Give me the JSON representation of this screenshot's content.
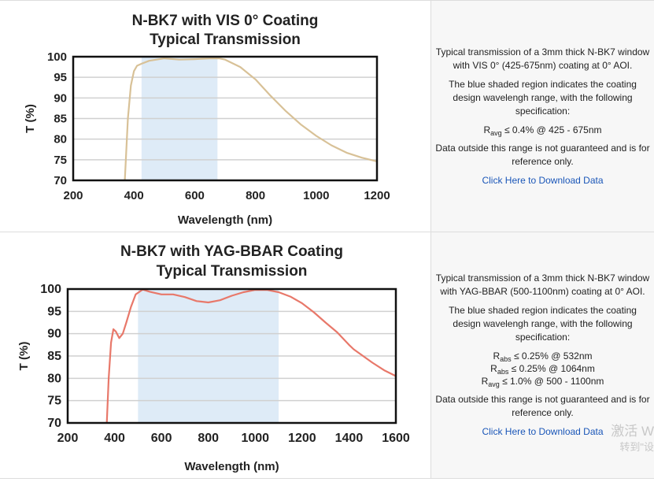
{
  "chart_data": [
    {
      "type": "line",
      "title": [
        "N-BK7 with VIS 0° Coating",
        "Typical Transmission"
      ],
      "xlabel": "Wavelength (nm)",
      "ylabel": "T (%)",
      "xlim": [
        200,
        1200
      ],
      "ylim": [
        70,
        100
      ],
      "xticks": [
        "200",
        "400",
        "600",
        "800",
        "1000",
        "1200"
      ],
      "yticks": [
        "100",
        "95",
        "90",
        "85",
        "80",
        "75",
        "70"
      ],
      "grid": true,
      "shaded_region": [
        425,
        675
      ],
      "line_color": "#d8c197",
      "shade_color": "#deebf7",
      "x": [
        370,
        380,
        390,
        400,
        410,
        425,
        450,
        500,
        550,
        600,
        650,
        680,
        700,
        750,
        800,
        850,
        900,
        950,
        1000,
        1050,
        1100,
        1150,
        1200
      ],
      "y": [
        70,
        85,
        93,
        96.5,
        97.8,
        98.3,
        99,
        99.6,
        99.3,
        99.4,
        99.6,
        99.6,
        99.3,
        97.5,
        94.5,
        90.5,
        86.8,
        83.5,
        80.8,
        78.5,
        76.7,
        75.5,
        74.6
      ]
    },
    {
      "type": "line",
      "title": [
        "N-BK7 with YAG-BBAR Coating",
        "Typical Transmission"
      ],
      "xlabel": "Wavelength (nm)",
      "ylabel": "T (%)",
      "xlim": [
        200,
        1600
      ],
      "ylim": [
        70,
        100
      ],
      "xticks": [
        "200",
        "400",
        "600",
        "800",
        "1000",
        "1200",
        "1400",
        "1600"
      ],
      "yticks": [
        "100",
        "95",
        "90",
        "85",
        "80",
        "75",
        "70"
      ],
      "grid": true,
      "shaded_region": [
        500,
        1100
      ],
      "line_color": "#e8786a",
      "shade_color": "#deebf7",
      "x": [
        367,
        375,
        385,
        395,
        405,
        420,
        435,
        450,
        470,
        490,
        520,
        550,
        600,
        650,
        700,
        750,
        800,
        850,
        900,
        950,
        1000,
        1050,
        1100,
        1150,
        1200,
        1250,
        1300,
        1350,
        1400,
        1420,
        1500,
        1550,
        1600
      ],
      "y": [
        70,
        80,
        88,
        91,
        90.5,
        89,
        90,
        92.5,
        96,
        98.8,
        99.9,
        99.4,
        98.8,
        98.8,
        98.2,
        97.3,
        97,
        97.5,
        98.5,
        99.3,
        99.8,
        99.8,
        99.3,
        98.3,
        96.8,
        94.8,
        92.5,
        90.3,
        87.5,
        86.5,
        83.5,
        81.8,
        80.5
      ]
    }
  ],
  "descriptions": [
    {
      "p1": "Typical transmission of a 3mm thick N-BK7 window with VIS 0° (425-675nm) coating at 0° AOI.",
      "p2": "The blue shaded region indicates the coating design wavelengh range, with the following specification:",
      "specs": [
        {
          "sym": "R",
          "sub": "avg",
          "text": " ≤ 0.4% @ 425 - 675nm"
        }
      ],
      "p3": "Data outside this range is not guaranteed and is for reference only.",
      "link": "Click Here to Download Data"
    },
    {
      "p1": "Typical transmission of a 3mm thick N-BK7 window with YAG-BBAR (500-1100nm) coating at 0° AOI.",
      "p2": "The blue shaded region indicates the coating design wavelengh range, with the following specification:",
      "specs": [
        {
          "sym": "R",
          "sub": "abs",
          "text": " ≤ 0.25% @ 532nm"
        },
        {
          "sym": "R",
          "sub": "abs",
          "text": " ≤ 0.25% @ 1064nm"
        },
        {
          "sym": "R",
          "sub": "avg",
          "text": " ≤ 1.0% @ 500 - 1100nm"
        }
      ],
      "p3": "Data outside this range is not guaranteed and is for reference only.",
      "link": "Click Here to Download Data"
    }
  ],
  "watermark": {
    "line1": "激活 W",
    "line2": "转到\"设"
  }
}
